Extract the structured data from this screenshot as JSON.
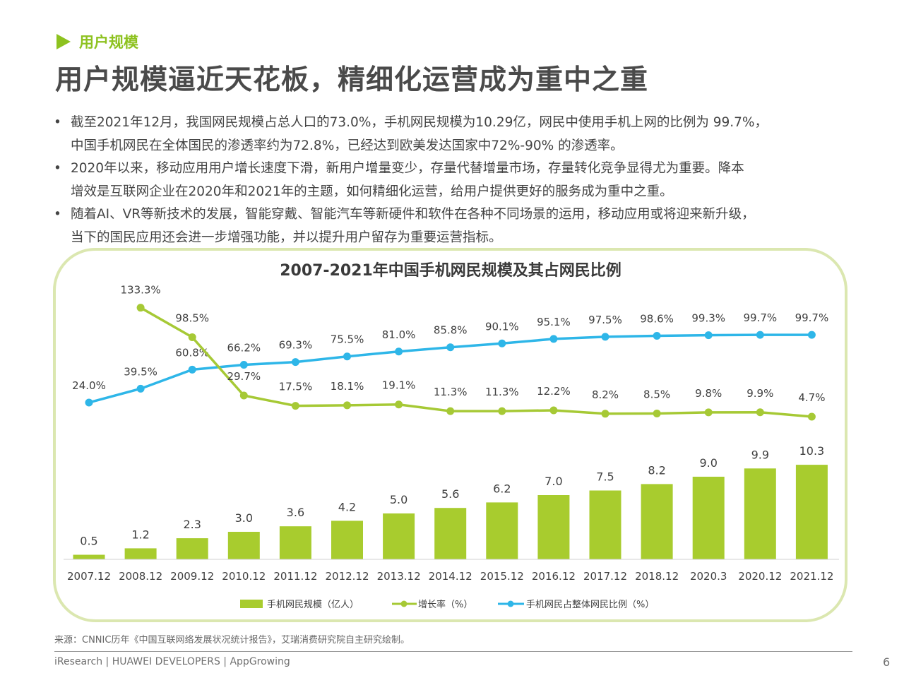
{
  "section": {
    "label": "用户规模"
  },
  "title": "用户规模逼近天花板，精细化运营成为重中之重",
  "bullets": [
    [
      "截至2021年12月，我国网民规模占总人口的73.0%，手机网民规模为10.29亿，网民中使用手机上网的比例为 99.7%，",
      "中国手机网民在全体国民的渗透率约为72.8%，已经达到欧美发达国家中72%-90% 的渗透率。"
    ],
    [
      "2020年以来，移动应用用户增长速度下滑，新用户增量变少，存量代替增量市场，存量转化竞争显得尤为重要。降本",
      "增效是互联网企业在2020年和2021年的主题，如何精细化运营，给用户提供更好的服务成为重中之重。"
    ],
    [
      "随着AI、VR等新技术的发展，智能穿戴、智能汽车等新硬件和软件在各种不同场景的运用，移动应用或将迎来新升级，",
      "当下的国民应用还会进一步增强功能，并以提升用户留存为重要运营指标。"
    ]
  ],
  "chart_data": {
    "type": "bar+line",
    "title": "2007-2021年中国手机网民规模及其占网民比例",
    "categories": [
      "2007.12",
      "2008.12",
      "2009.12",
      "2010.12",
      "2011.12",
      "2012.12",
      "2013.12",
      "2014.12",
      "2015.12",
      "2016.12",
      "2017.12",
      "2018.12",
      "2020.3",
      "2020.12",
      "2021.12"
    ],
    "bar_labels": [
      "0.5",
      "1.2",
      "2.3",
      "3.0",
      "3.6",
      "4.2",
      "5.0",
      "5.6",
      "6.2",
      "7.0",
      "7.5",
      "8.2",
      "9.0",
      "9.9",
      "10.3"
    ],
    "series": [
      {
        "name": "手机网民规模（亿人）",
        "kind": "bar",
        "color": "#a8cc2e",
        "values": [
          0.5,
          1.2,
          2.3,
          3.0,
          3.6,
          4.2,
          5.0,
          5.6,
          6.2,
          7.0,
          7.5,
          8.2,
          9.0,
          9.9,
          10.3
        ]
      },
      {
        "name": "增长率（%）",
        "kind": "line",
        "color": "#a6c935",
        "values": [
          null,
          133.3,
          98.5,
          29.7,
          17.5,
          18.1,
          19.1,
          11.3,
          11.3,
          12.2,
          8.2,
          8.5,
          9.8,
          9.9,
          4.7
        ],
        "labels": [
          "",
          "133.3%",
          "98.5%",
          "29.7%",
          "17.5%",
          "18.1%",
          "19.1%",
          "11.3%",
          "11.3%",
          "12.2%",
          "8.2%",
          "8.5%",
          "9.8%",
          "9.9%",
          "4.7%"
        ]
      },
      {
        "name": "手机网民占整体网民比例（%）",
        "kind": "line",
        "color": "#2eb6e8",
        "values": [
          24.0,
          39.5,
          60.8,
          66.2,
          69.3,
          75.5,
          81.0,
          85.8,
          90.1,
          95.1,
          97.5,
          98.6,
          99.3,
          99.7,
          99.7
        ],
        "labels": [
          "24.0%",
          "39.5%",
          "60.8%",
          "66.2%",
          "69.3%",
          "75.5%",
          "81.0%",
          "85.8%",
          "90.1%",
          "95.1%",
          "97.5%",
          "98.6%",
          "99.3%",
          "99.7%",
          "99.7%"
        ]
      }
    ],
    "legend_position": "bottom"
  },
  "source": "来源：CNNIC历年《中国互联网络发展状况统计报告》，艾瑞消费研究院自主研究绘制。",
  "footer": {
    "brand": "iResearch | HUAWEI DEVELOPERS | AppGrowing",
    "page": "6"
  },
  "colors": {
    "accent": "#8dc21f",
    "bar": "#a8cc2e",
    "growth": "#a6c935",
    "share": "#2eb6e8",
    "frame": "#dbe7b0"
  }
}
